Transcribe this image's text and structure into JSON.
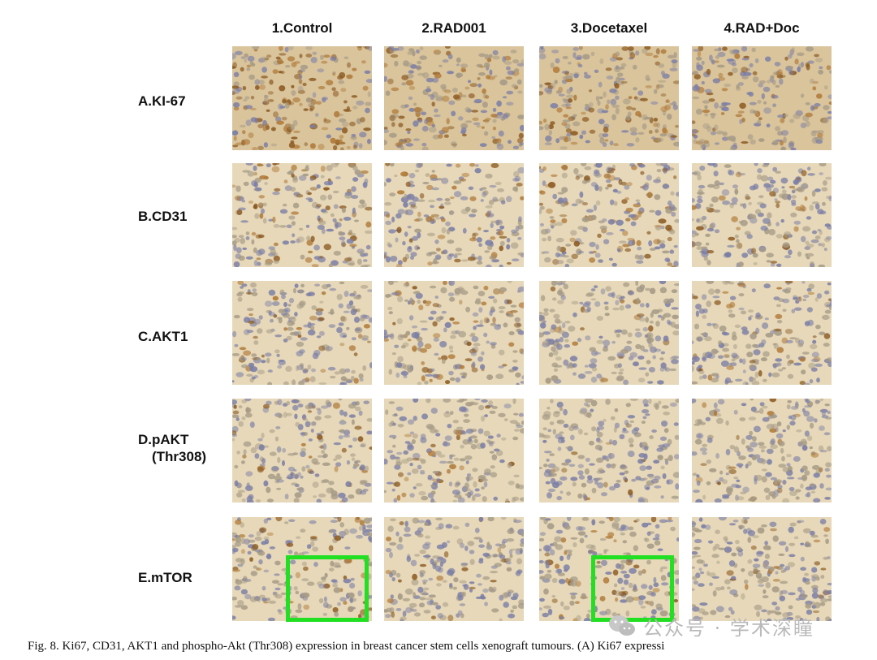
{
  "columns": [
    "1.Control",
    "2.RAD001",
    "3.Docetaxel",
    "4.RAD+Doc"
  ],
  "rows": [
    {
      "label": "A.KI-67",
      "label_line2": ""
    },
    {
      "label": "B.CD31",
      "label_line2": ""
    },
    {
      "label": "C.AKT1",
      "label_line2": ""
    },
    {
      "label": "D.pAKT",
      "label_line2": "(Thr308)"
    },
    {
      "label": "E.mTOR",
      "label_line2": ""
    }
  ],
  "highlighted_panels": [
    "E.mTOR / 1.Control",
    "E.mTOR / 3.Docetaxel"
  ],
  "highlight_color": "#21e021",
  "caption": "Fig. 8.  Ki67, CD31, AKT1 and phospho-Akt (Thr308) expression in breast cancer stem cells xenograft tumours. (A) Ki67 expressi",
  "watermark": {
    "icon": "wechat-icon",
    "text": "公众号 · 学术深瞳"
  },
  "colors": {
    "stain_brown": "#9a6a2c",
    "nucleus_blue": "#6c6f9c",
    "background": "#e9dcc0"
  }
}
